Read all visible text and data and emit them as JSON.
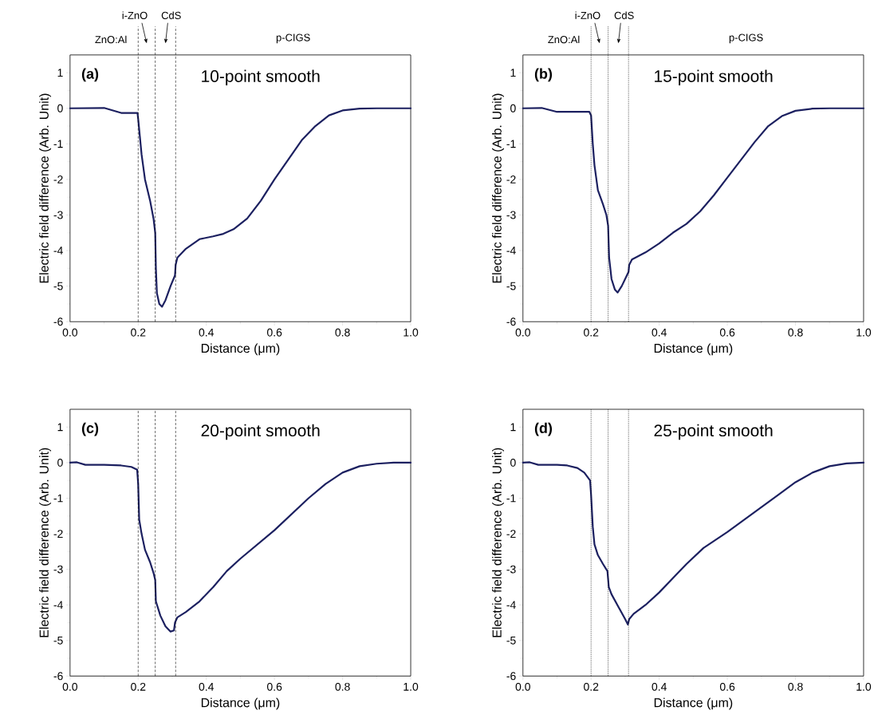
{
  "chart_data": [
    {
      "type": "line",
      "xlabel": "Distance (μm)",
      "ylabel": "Electric field difference (Arb. Unit)",
      "annotations": [
        "(a)",
        "10-point smooth",
        "ZnO:Al",
        "i-ZnO",
        "CdS",
        "p-CIGS"
      ],
      "xlim": [
        0,
        1
      ],
      "ylim": [
        -6,
        1.5
      ],
      "xticks": [
        {
          "value": 0,
          "label": "0.0"
        },
        {
          "value": 0.2,
          "label": "0.2"
        },
        {
          "value": 0.4,
          "label": "0.4"
        },
        {
          "value": 0.6,
          "label": "0.6"
        },
        {
          "value": 0.8,
          "label": "0.8"
        },
        {
          "value": 1,
          "label": "1.0"
        }
      ],
      "yticks": [
        -6,
        -5,
        -4,
        -3,
        -2,
        -1,
        0,
        1
      ],
      "ref_lines": [
        {
          "axis": "x",
          "value": 0.2,
          "line_style": "dashed"
        },
        {
          "axis": "x",
          "value": 0.25,
          "line_style": "dashed"
        },
        {
          "axis": "x",
          "value": 0.31,
          "line_style": "dashed"
        }
      ],
      "series": [
        {
          "color": "#1c2060",
          "x": [
            0,
            0.1,
            0.15,
            0.198,
            0.2,
            0.21,
            0.22,
            0.235,
            0.245,
            0.25,
            0.252,
            0.255,
            0.262,
            0.27,
            0.28,
            0.295,
            0.308,
            0.31,
            0.315,
            0.34,
            0.38,
            0.42,
            0.45,
            0.48,
            0.52,
            0.56,
            0.6,
            0.64,
            0.68,
            0.72,
            0.76,
            0.8,
            0.85,
            0.9,
            1.0
          ],
          "values": [
            0,
            0.01,
            -0.13,
            -0.13,
            -0.3,
            -1.3,
            -2.0,
            -2.6,
            -3.1,
            -3.5,
            -4.5,
            -5.2,
            -5.5,
            -5.58,
            -5.4,
            -5.0,
            -4.7,
            -4.4,
            -4.2,
            -3.95,
            -3.68,
            -3.6,
            -3.53,
            -3.4,
            -3.1,
            -2.6,
            -2.0,
            -1.45,
            -0.9,
            -0.5,
            -0.2,
            -0.06,
            -0.01,
            0,
            0
          ]
        }
      ]
    },
    {
      "type": "line",
      "xlabel": "Distance (μm)",
      "ylabel": "Electric field difference (Arb. Unit)",
      "annotations": [
        "(b)",
        "15-point smooth",
        "ZnO:Al",
        "i-ZnO",
        "CdS",
        "p-CIGS"
      ],
      "xlim": [
        0,
        1
      ],
      "ylim": [
        -6,
        1.5
      ],
      "xticks": [
        {
          "value": 0,
          "label": "0.0"
        },
        {
          "value": 0.2,
          "label": "0.2"
        },
        {
          "value": 0.4,
          "label": "0.4"
        },
        {
          "value": 0.6,
          "label": "0.6"
        },
        {
          "value": 0.8,
          "label": "0.8"
        },
        {
          "value": 1,
          "label": "1.0"
        }
      ],
      "yticks": [
        -6,
        -5,
        -4,
        -3,
        -2,
        -1,
        0,
        1
      ],
      "ref_lines": [
        {
          "axis": "x",
          "value": 0.2,
          "line_style": "dotted"
        },
        {
          "axis": "x",
          "value": 0.25,
          "line_style": "dotted"
        },
        {
          "axis": "x",
          "value": 0.31,
          "line_style": "dotted"
        }
      ],
      "series": [
        {
          "color": "#1c2060",
          "x": [
            0,
            0.055,
            0.1,
            0.195,
            0.2,
            0.205,
            0.21,
            0.22,
            0.235,
            0.245,
            0.25,
            0.253,
            0.26,
            0.27,
            0.278,
            0.29,
            0.305,
            0.31,
            0.312,
            0.32,
            0.36,
            0.4,
            0.44,
            0.48,
            0.52,
            0.56,
            0.6,
            0.64,
            0.68,
            0.72,
            0.76,
            0.8,
            0.85,
            0.9,
            1.0
          ],
          "values": [
            0,
            0.01,
            -0.1,
            -0.1,
            -0.2,
            -1.0,
            -1.6,
            -2.3,
            -2.7,
            -3.0,
            -3.3,
            -4.2,
            -4.8,
            -5.1,
            -5.18,
            -5.0,
            -4.7,
            -4.6,
            -4.4,
            -4.25,
            -4.05,
            -3.8,
            -3.5,
            -3.25,
            -2.9,
            -2.45,
            -1.95,
            -1.45,
            -0.95,
            -0.5,
            -0.22,
            -0.07,
            -0.01,
            0,
            0
          ]
        }
      ]
    },
    {
      "type": "line",
      "xlabel": "Distance (μm)",
      "ylabel": "Electric field difference (Arb. Unit)",
      "annotations": [
        "(c)",
        "20-point smooth"
      ],
      "xlim": [
        0,
        1
      ],
      "ylim": [
        -6,
        1.5
      ],
      "xticks": [
        {
          "value": 0,
          "label": "0.0"
        },
        {
          "value": 0.2,
          "label": "0.2"
        },
        {
          "value": 0.4,
          "label": "0.4"
        },
        {
          "value": 0.6,
          "label": "0.6"
        },
        {
          "value": 0.8,
          "label": "0.8"
        },
        {
          "value": 1,
          "label": "1.0"
        }
      ],
      "yticks": [
        -6,
        -5,
        -4,
        -3,
        -2,
        -1,
        0,
        1
      ],
      "ref_lines": [
        {
          "axis": "x",
          "value": 0.2,
          "line_style": "dashed"
        },
        {
          "axis": "x",
          "value": 0.25,
          "line_style": "dashed"
        },
        {
          "axis": "x",
          "value": 0.31,
          "line_style": "dashed"
        }
      ],
      "series": [
        {
          "color": "#1c2060",
          "x": [
            0,
            0.02,
            0.045,
            0.1,
            0.15,
            0.18,
            0.197,
            0.2,
            0.203,
            0.21,
            0.22,
            0.235,
            0.245,
            0.25,
            0.252,
            0.265,
            0.28,
            0.295,
            0.305,
            0.308,
            0.315,
            0.34,
            0.38,
            0.42,
            0.46,
            0.5,
            0.55,
            0.6,
            0.65,
            0.7,
            0.75,
            0.8,
            0.85,
            0.9,
            0.95,
            1.0
          ],
          "values": [
            0,
            0.01,
            -0.06,
            -0.06,
            -0.08,
            -0.12,
            -0.2,
            -0.6,
            -1.6,
            -2.0,
            -2.45,
            -2.8,
            -3.1,
            -3.3,
            -3.9,
            -4.3,
            -4.6,
            -4.75,
            -4.72,
            -4.5,
            -4.35,
            -4.2,
            -3.9,
            -3.5,
            -3.05,
            -2.7,
            -2.3,
            -1.9,
            -1.45,
            -1.0,
            -0.6,
            -0.28,
            -0.1,
            -0.03,
            0,
            0
          ]
        }
      ]
    },
    {
      "type": "line",
      "xlabel": "Distance (μm)",
      "ylabel": "Electric field difference (Arb. Unit)",
      "annotations": [
        "(d)",
        "25-point smooth"
      ],
      "xlim": [
        0,
        1
      ],
      "ylim": [
        -6,
        1.5
      ],
      "xticks": [
        {
          "value": 0,
          "label": "0.0"
        },
        {
          "value": 0.2,
          "label": "0.2"
        },
        {
          "value": 0.4,
          "label": "0.4"
        },
        {
          "value": 0.6,
          "label": "0.6"
        },
        {
          "value": 0.8,
          "label": "0.8"
        },
        {
          "value": 1,
          "label": "1.0"
        }
      ],
      "yticks": [
        -6,
        -5,
        -4,
        -3,
        -2,
        -1,
        0,
        1
      ],
      "ref_lines": [
        {
          "axis": "x",
          "value": 0.2,
          "line_style": "dotted"
        },
        {
          "axis": "x",
          "value": 0.25,
          "line_style": "dotted"
        },
        {
          "axis": "x",
          "value": 0.31,
          "line_style": "dotted"
        }
      ],
      "series": [
        {
          "color": "#1c2060",
          "x": [
            0,
            0.02,
            0.045,
            0.1,
            0.13,
            0.16,
            0.18,
            0.197,
            0.2,
            0.205,
            0.21,
            0.22,
            0.235,
            0.248,
            0.252,
            0.26,
            0.28,
            0.3,
            0.308,
            0.312,
            0.325,
            0.36,
            0.4,
            0.44,
            0.48,
            0.53,
            0.6,
            0.65,
            0.7,
            0.75,
            0.8,
            0.85,
            0.9,
            0.95,
            1.0
          ],
          "values": [
            0,
            0.01,
            -0.06,
            -0.06,
            -0.08,
            -0.15,
            -0.28,
            -0.5,
            -0.9,
            -1.8,
            -2.3,
            -2.6,
            -2.85,
            -3.05,
            -3.5,
            -3.7,
            -4.05,
            -4.4,
            -4.55,
            -4.4,
            -4.25,
            -4.0,
            -3.65,
            -3.25,
            -2.85,
            -2.4,
            -1.95,
            -1.6,
            -1.25,
            -0.9,
            -0.55,
            -0.28,
            -0.1,
            -0.02,
            0
          ]
        }
      ]
    }
  ]
}
